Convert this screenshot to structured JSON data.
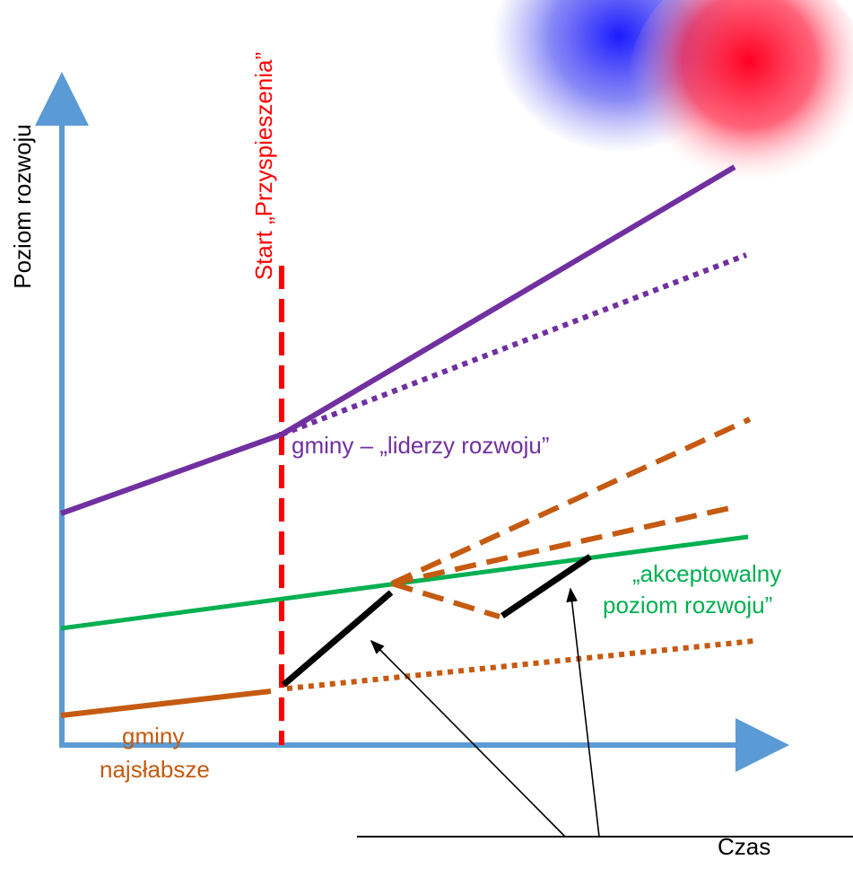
{
  "axes": {
    "y_label": "Poziom rozwoju",
    "x_label": "Czas"
  },
  "marker": {
    "label": "Start „Przyspieszenia”"
  },
  "labels": {
    "leaders": "gminy – „liderzy rozwoju”",
    "acceptable_line1": "„akceptowalny",
    "acceptable_line2": "poziom rozwoju”",
    "weakest_line1": "gminy",
    "weakest_line2": "najsłabsze"
  },
  "colors": {
    "axis": "#5b9bd5",
    "marker": "#ff0000",
    "leaders": "#7030a0",
    "acceptable": "#00b050",
    "weakest": "#c55a11",
    "paths": "#000000",
    "arrows": "#000000"
  }
}
